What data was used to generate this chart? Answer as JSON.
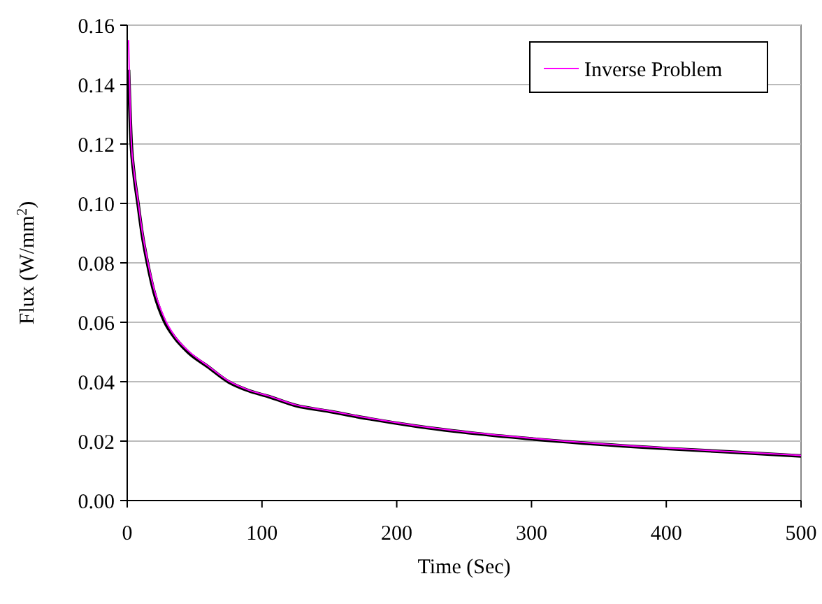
{
  "chart_data": {
    "type": "line",
    "xlabel": "Time (Sec)",
    "ylabel": "Flux (W/mm$^{2}$)",
    "xlim": [
      0,
      500
    ],
    "xticks": [
      0,
      100,
      200,
      300,
      400,
      500
    ],
    "ylim": [
      0,
      0.16
    ],
    "yticks": [
      {
        "value": 0,
        "label": "0.00"
      },
      {
        "value": 0.02,
        "label": "0.02"
      },
      {
        "value": 0.04,
        "label": "0.04"
      },
      {
        "value": 0.06,
        "label": "0.06"
      },
      {
        "value": 0.08,
        "label": "0.08"
      },
      {
        "value": 0.1,
        "label": "0.10"
      },
      {
        "value": 0.12,
        "label": "0.12"
      },
      {
        "value": 0.14,
        "label": "0.14"
      },
      {
        "value": 0.16,
        "label": "0.16"
      }
    ],
    "grid": "y",
    "legend": "top right",
    "marker": "none",
    "line_style": "solid",
    "series": [
      {
        "color": "#000000",
        "x": [
          1,
          3,
          5,
          8,
          11,
          15,
          20,
          28,
          35,
          45,
          60,
          75,
          90,
          105,
          125,
          150,
          180,
          215,
          260,
          320,
          400,
          450,
          500
        ],
        "values": [
          0.145,
          0.12,
          0.11,
          0.1,
          0.09,
          0.08,
          0.07,
          0.06,
          0.055,
          0.05,
          0.045,
          0.04,
          0.037,
          0.035,
          0.032,
          0.03,
          0.0275,
          0.025,
          0.0225,
          0.02,
          0.0175,
          0.0163,
          0.015
        ]
      },
      {
        "name": "Inverse Problem",
        "color": "#ff00ff",
        "x": [
          1,
          3,
          5,
          8,
          11,
          15,
          20,
          28,
          35,
          45,
          60,
          75,
          90,
          105,
          125,
          150,
          180,
          215,
          260,
          320,
          400,
          450,
          500
        ],
        "values": [
          0.155,
          0.121,
          0.111,
          0.101,
          0.091,
          0.081,
          0.071,
          0.061,
          0.0555,
          0.0505,
          0.0453,
          0.0403,
          0.0372,
          0.0352,
          0.0322,
          0.0302,
          0.0277,
          0.0252,
          0.0227,
          0.0202,
          0.0177,
          0.0164,
          0.0152
        ]
      }
    ]
  }
}
